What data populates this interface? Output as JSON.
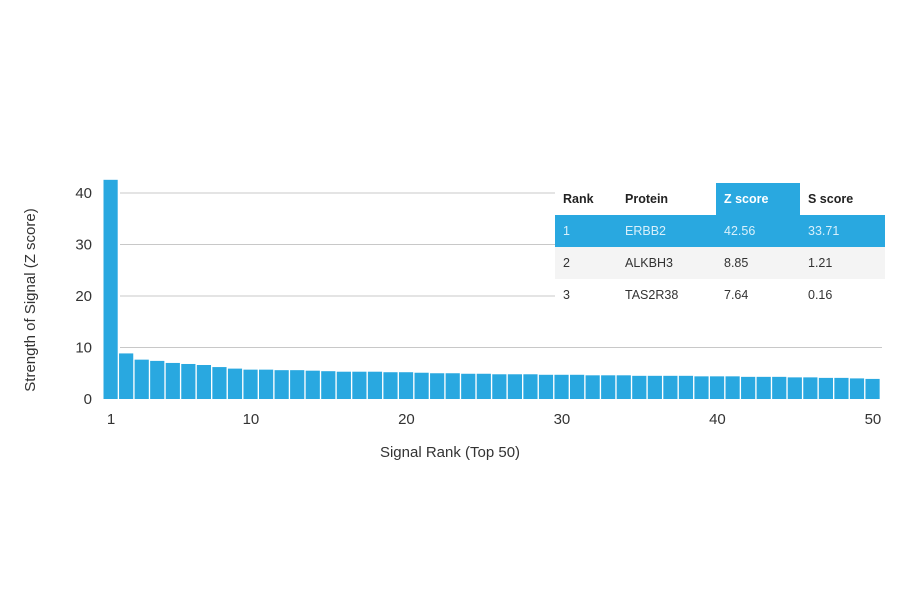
{
  "chart_data": {
    "type": "bar",
    "title": "",
    "xlabel": "Signal Rank (Top 50)",
    "ylabel": "Strength of Signal (Z score)",
    "ylim": [
      0,
      43
    ],
    "xlim": [
      1,
      50
    ],
    "yticks": [
      0,
      10,
      20,
      30,
      40
    ],
    "xticks": [
      1,
      10,
      20,
      30,
      40,
      50
    ],
    "grid": true,
    "color": "#29a8e0",
    "x": [
      1,
      2,
      3,
      4,
      5,
      6,
      7,
      8,
      9,
      10,
      11,
      12,
      13,
      14,
      15,
      16,
      17,
      18,
      19,
      20,
      21,
      22,
      23,
      24,
      25,
      26,
      27,
      28,
      29,
      30,
      31,
      32,
      33,
      34,
      35,
      36,
      37,
      38,
      39,
      40,
      41,
      42,
      43,
      44,
      45,
      46,
      47,
      48,
      49,
      50
    ],
    "values": [
      42.56,
      8.85,
      7.64,
      7.4,
      7.0,
      6.8,
      6.6,
      6.2,
      5.9,
      5.7,
      5.7,
      5.6,
      5.6,
      5.5,
      5.4,
      5.3,
      5.3,
      5.3,
      5.2,
      5.2,
      5.1,
      5.0,
      5.0,
      4.9,
      4.9,
      4.8,
      4.8,
      4.8,
      4.7,
      4.7,
      4.7,
      4.6,
      4.6,
      4.6,
      4.5,
      4.5,
      4.5,
      4.5,
      4.4,
      4.4,
      4.4,
      4.3,
      4.3,
      4.3,
      4.2,
      4.2,
      4.1,
      4.1,
      4.0,
      3.9
    ]
  },
  "table": {
    "headers": [
      "Rank",
      "Protein",
      "Z score",
      "S score"
    ],
    "rows": [
      [
        "1",
        "ERBB2",
        "42.56",
        "33.71"
      ],
      [
        "2",
        "ALKBH3",
        "8.85",
        "1.21"
      ],
      [
        "3",
        "TAS2R38",
        "7.64",
        "0.16"
      ]
    ]
  }
}
